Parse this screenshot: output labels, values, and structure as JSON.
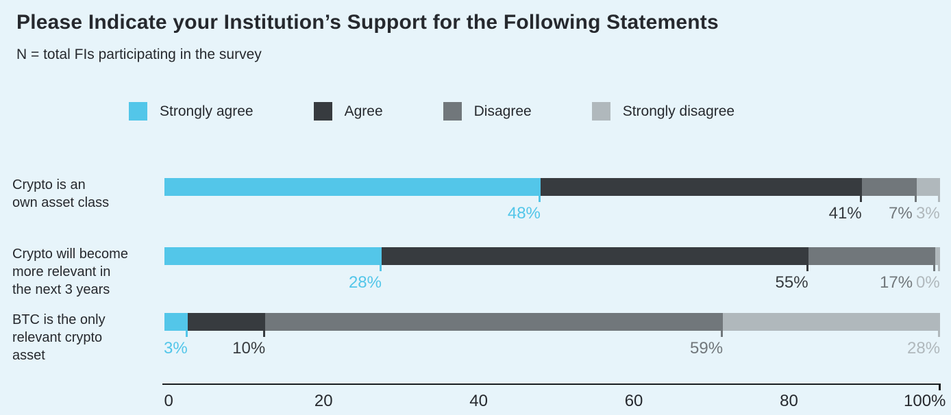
{
  "title": "Please Indicate your Institution’s Support for the Following Statements",
  "subtitle": "N = total FIs participating in the survey",
  "colors": {
    "background": "#E7F4FA",
    "strongly_agree": "#53C6E9",
    "agree": "#373B3F",
    "disagree": "#71777B",
    "strongly_disagree": "#B0B8BC",
    "text": "#26292E",
    "axis_line": "#1A1D20"
  },
  "chart_data": {
    "type": "bar",
    "orientation": "horizontal_stacked",
    "title": "Please Indicate your Institution’s Support for the Following Statements",
    "subtitle": "N = total FIs participating in the survey",
    "legend_position": "top",
    "grid": false,
    "value_suffix": "%",
    "categories": [
      "Crypto is an own asset class",
      "Crypto will become more relevant in the next 3 years",
      "BTC is the only relevant crypto asset"
    ],
    "category_lines": [
      [
        "Crypto is an",
        "own asset class"
      ],
      [
        "Crypto will become",
        "more relevant in",
        "the next 3 years"
      ],
      [
        "BTC is the only",
        "relevant crypto",
        "asset"
      ]
    ],
    "series": [
      {
        "name": "Strongly agree",
        "color_key": "strongly_agree",
        "values": [
          48,
          28,
          3
        ]
      },
      {
        "name": "Agree",
        "color_key": "agree",
        "values": [
          41,
          55,
          10
        ]
      },
      {
        "name": "Disagree",
        "color_key": "disagree",
        "values": [
          7,
          17,
          59
        ]
      },
      {
        "name": "Strongly disagree",
        "color_key": "strongly_disagree",
        "values": [
          3,
          0,
          28
        ]
      }
    ],
    "x_axis": {
      "range": [
        0,
        100
      ],
      "tick_values": [
        0,
        20,
        40,
        60,
        80,
        100
      ],
      "tick_labels": [
        "0",
        "20",
        "40",
        "60",
        "80",
        "100%"
      ]
    }
  }
}
